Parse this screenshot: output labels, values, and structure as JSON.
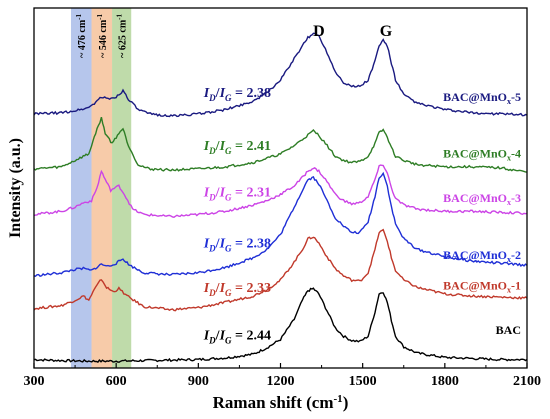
{
  "chart_data": {
    "type": "line",
    "title": "",
    "xlabel": "Raman shift (cm",
    "xlabel_sup": "-1",
    "xlabel_close": ")",
    "ylabel": "Intensity (a.u.)",
    "xlim": [
      300,
      2100
    ],
    "xticks": [
      300,
      600,
      900,
      1200,
      1500,
      1800,
      2100
    ],
    "xtick_labels": [
      "300",
      "600",
      "900",
      "1200",
      "1500",
      "1800",
      "2100"
    ],
    "yticks_shown": false,
    "grid": false,
    "legend": "labels-at-right-end-of-each-curve",
    "peak_labels": [
      {
        "text": "D",
        "x": 1340
      },
      {
        "text": "G",
        "x": 1585
      }
    ],
    "bands": [
      {
        "label": "~ 476 cm",
        "sup": "-1",
        "x0": 435,
        "x1": 510,
        "color": "#9db3e6"
      },
      {
        "label": "~ 546 cm",
        "sup": "-1",
        "x0": 510,
        "x1": 585,
        "color": "#f4b98c"
      },
      {
        "label": "~ 625 cm",
        "sup": "-1",
        "x0": 585,
        "x1": 655,
        "color": "#a9cf8e"
      }
    ],
    "ratio_label": {
      "I": "I",
      "D": "D",
      "slash": "/",
      "G": "G",
      "eq": "= "
    },
    "series": [
      {
        "name": "BAC",
        "color": "#000000",
        "ratio": "2.44",
        "baseline": 8.0,
        "points": [
          [
            300,
            8.0
          ],
          [
            400,
            7.0
          ],
          [
            500,
            6.5
          ],
          [
            600,
            6.5
          ],
          [
            700,
            7.0
          ],
          [
            800,
            7.5
          ],
          [
            900,
            8.0
          ],
          [
            1000,
            9.5
          ],
          [
            1100,
            13
          ],
          [
            1150,
            19
          ],
          [
            1200,
            27
          ],
          [
            1250,
            46
          ],
          [
            1280,
            64
          ],
          [
            1300,
            73
          ],
          [
            1320,
            75
          ],
          [
            1340,
            70
          ],
          [
            1370,
            54
          ],
          [
            1400,
            38
          ],
          [
            1430,
            30
          ],
          [
            1460,
            26
          ],
          [
            1490,
            25
          ],
          [
            1520,
            30
          ],
          [
            1545,
            53
          ],
          [
            1560,
            70
          ],
          [
            1575,
            72
          ],
          [
            1590,
            62
          ],
          [
            1605,
            45
          ],
          [
            1620,
            30
          ],
          [
            1650,
            20
          ],
          [
            1700,
            14
          ],
          [
            1800,
            10
          ],
          [
            1900,
            9
          ],
          [
            2000,
            8
          ],
          [
            2100,
            8
          ]
        ]
      },
      {
        "name": "BAC@MnOx-1",
        "color": "#c0392b",
        "ratio": "2.33",
        "baseline": 56.0,
        "points": [
          [
            300,
            56
          ],
          [
            400,
            59
          ],
          [
            450,
            64
          ],
          [
            480,
            68
          ],
          [
            500,
            64
          ],
          [
            520,
            74
          ],
          [
            546,
            84
          ],
          [
            565,
            76
          ],
          [
            590,
            72
          ],
          [
            610,
            75
          ],
          [
            640,
            68
          ],
          [
            700,
            58
          ],
          [
            800,
            55
          ],
          [
            900,
            57
          ],
          [
            1000,
            62
          ],
          [
            1100,
            68
          ],
          [
            1150,
            74
          ],
          [
            1200,
            83
          ],
          [
            1250,
            100
          ],
          [
            1280,
            112
          ],
          [
            1300,
            122
          ],
          [
            1320,
            124
          ],
          [
            1340,
            118
          ],
          [
            1370,
            105
          ],
          [
            1400,
            94
          ],
          [
            1430,
            87
          ],
          [
            1460,
            83
          ],
          [
            1490,
            82
          ],
          [
            1520,
            90
          ],
          [
            1545,
            112
          ],
          [
            1560,
            128
          ],
          [
            1575,
            130
          ],
          [
            1590,
            120
          ],
          [
            1605,
            104
          ],
          [
            1620,
            92
          ],
          [
            1650,
            83
          ],
          [
            1700,
            76
          ],
          [
            1800,
            70
          ],
          [
            1900,
            68
          ],
          [
            2000,
            67
          ],
          [
            2100,
            66
          ]
        ]
      },
      {
        "name": "BAC@MnOx-2",
        "color": "#1f2fd6",
        "ratio": "2.38",
        "baseline": 87.0,
        "points": [
          [
            300,
            87
          ],
          [
            400,
            90
          ],
          [
            450,
            93
          ],
          [
            480,
            94
          ],
          [
            510,
            92
          ],
          [
            546,
            98
          ],
          [
            570,
            96
          ],
          [
            600,
            99
          ],
          [
            625,
            103
          ],
          [
            650,
            97
          ],
          [
            700,
            90
          ],
          [
            800,
            88
          ],
          [
            900,
            90
          ],
          [
            1000,
            95
          ],
          [
            1100,
            104
          ],
          [
            1150,
            112
          ],
          [
            1200,
            126
          ],
          [
            1250,
            152
          ],
          [
            1280,
            168
          ],
          [
            1300,
            178
          ],
          [
            1320,
            180
          ],
          [
            1340,
            174
          ],
          [
            1370,
            158
          ],
          [
            1400,
            142
          ],
          [
            1430,
            134
          ],
          [
            1460,
            128
          ],
          [
            1490,
            128
          ],
          [
            1520,
            138
          ],
          [
            1545,
            162
          ],
          [
            1560,
            180
          ],
          [
            1575,
            184
          ],
          [
            1590,
            172
          ],
          [
            1605,
            152
          ],
          [
            1620,
            136
          ],
          [
            1650,
            122
          ],
          [
            1700,
            112
          ],
          [
            1800,
            105
          ],
          [
            1900,
            101
          ],
          [
            2000,
            99
          ],
          [
            2100,
            97
          ]
        ]
      },
      {
        "name": "BAC@MnOx-3",
        "color": "#cc44e6",
        "ratio": "2.31",
        "baseline": 145.0,
        "points": [
          [
            300,
            145
          ],
          [
            400,
            148
          ],
          [
            450,
            152
          ],
          [
            480,
            156
          ],
          [
            510,
            158
          ],
          [
            530,
            170
          ],
          [
            546,
            186
          ],
          [
            560,
            178
          ],
          [
            580,
            168
          ],
          [
            610,
            172
          ],
          [
            630,
            164
          ],
          [
            660,
            150
          ],
          [
            700,
            145
          ],
          [
            800,
            143
          ],
          [
            900,
            145
          ],
          [
            1000,
            148
          ],
          [
            1100,
            154
          ],
          [
            1150,
            158
          ],
          [
            1200,
            164
          ],
          [
            1250,
            172
          ],
          [
            1280,
            180
          ],
          [
            1300,
            186
          ],
          [
            1320,
            189
          ],
          [
            1340,
            186
          ],
          [
            1370,
            176
          ],
          [
            1400,
            164
          ],
          [
            1430,
            158
          ],
          [
            1460,
            155
          ],
          [
            1490,
            156
          ],
          [
            1520,
            162
          ],
          [
            1545,
            178
          ],
          [
            1560,
            190
          ],
          [
            1575,
            192
          ],
          [
            1590,
            184
          ],
          [
            1605,
            170
          ],
          [
            1620,
            160
          ],
          [
            1650,
            154
          ],
          [
            1700,
            150
          ],
          [
            1800,
            148
          ],
          [
            1900,
            148
          ],
          [
            2000,
            147
          ],
          [
            2100,
            146
          ]
        ]
      },
      {
        "name": "BAC@MnOx-4",
        "color": "#2e7d25",
        "ratio": "2.41",
        "baseline": 188.0,
        "points": [
          [
            300,
            188
          ],
          [
            400,
            190
          ],
          [
            450,
            196
          ],
          [
            480,
            200
          ],
          [
            500,
            202
          ],
          [
            525,
            222
          ],
          [
            546,
            236
          ],
          [
            560,
            222
          ],
          [
            585,
            212
          ],
          [
            610,
            222
          ],
          [
            625,
            226
          ],
          [
            645,
            210
          ],
          [
            680,
            192
          ],
          [
            720,
            188
          ],
          [
            800,
            187
          ],
          [
            900,
            188
          ],
          [
            1000,
            190
          ],
          [
            1100,
            194
          ],
          [
            1150,
            198
          ],
          [
            1200,
            202
          ],
          [
            1250,
            210
          ],
          [
            1280,
            216
          ],
          [
            1300,
            220
          ],
          [
            1320,
            224
          ],
          [
            1340,
            220
          ],
          [
            1370,
            210
          ],
          [
            1400,
            200
          ],
          [
            1430,
            196
          ],
          [
            1460,
            194
          ],
          [
            1490,
            195
          ],
          [
            1520,
            200
          ],
          [
            1545,
            212
          ],
          [
            1560,
            222
          ],
          [
            1575,
            225
          ],
          [
            1590,
            218
          ],
          [
            1605,
            208
          ],
          [
            1620,
            200
          ],
          [
            1650,
            196
          ],
          [
            1700,
            192
          ],
          [
            1800,
            190
          ],
          [
            1900,
            190
          ],
          [
            2000,
            189
          ],
          [
            2100,
            185
          ]
        ]
      },
      {
        "name": "BAC@MnOx-5",
        "color": "#1a1a80",
        "ratio": "2.38",
        "baseline": 240.0,
        "points": [
          [
            300,
            240
          ],
          [
            400,
            241
          ],
          [
            450,
            243
          ],
          [
            500,
            246
          ],
          [
            520,
            250
          ],
          [
            546,
            256
          ],
          [
            570,
            254
          ],
          [
            600,
            256
          ],
          [
            625,
            262
          ],
          [
            645,
            254
          ],
          [
            680,
            244
          ],
          [
            720,
            240
          ],
          [
            800,
            238
          ],
          [
            900,
            240
          ],
          [
            1000,
            244
          ],
          [
            1100,
            252
          ],
          [
            1150,
            260
          ],
          [
            1200,
            272
          ],
          [
            1250,
            292
          ],
          [
            1280,
            304
          ],
          [
            1300,
            312
          ],
          [
            1320,
            316
          ],
          [
            1340,
            314
          ],
          [
            1370,
            298
          ],
          [
            1400,
            280
          ],
          [
            1430,
            270
          ],
          [
            1460,
            266
          ],
          [
            1490,
            266
          ],
          [
            1520,
            272
          ],
          [
            1545,
            290
          ],
          [
            1560,
            304
          ],
          [
            1575,
            310
          ],
          [
            1590,
            304
          ],
          [
            1605,
            288
          ],
          [
            1620,
            272
          ],
          [
            1650,
            258
          ],
          [
            1700,
            250
          ],
          [
            1800,
            244
          ],
          [
            1900,
            241
          ],
          [
            2000,
            240
          ],
          [
            2100,
            239
          ]
        ]
      }
    ],
    "ylim": [
      0,
      340
    ]
  }
}
